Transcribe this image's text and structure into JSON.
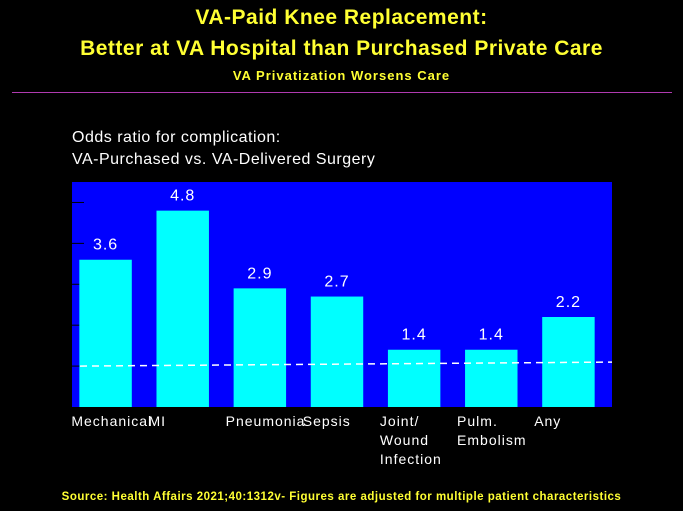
{
  "header": {
    "title_line1": "VA-Paid Knee Replacement:",
    "title_line2": "Better at VA Hospital than Purchased Private Care",
    "subtitle": "VA Privatization Worsens Care"
  },
  "chart_data": {
    "type": "bar",
    "ylabel_line1": "Odds ratio for complication:",
    "ylabel_line2": "VA-Purchased vs. VA-Delivered Surgery",
    "categories": [
      [
        "Mechanical"
      ],
      [
        "MI"
      ],
      [
        "Pneumonia"
      ],
      [
        "Sepsis"
      ],
      [
        "Joint/",
        "Wound",
        "Infection"
      ],
      [
        "Pulm.",
        "Embolism"
      ],
      [
        "Any"
      ]
    ],
    "values": [
      3.6,
      4.8,
      2.9,
      2.7,
      1.4,
      1.4,
      2.2
    ],
    "value_labels": [
      "3.6",
      "4.8",
      "2.9",
      "2.7",
      "1.4",
      "1.4",
      "2.2"
    ],
    "ylim": [
      0,
      5.5
    ],
    "reference_line": 1.0,
    "colors": {
      "plot_background": "#0000ff",
      "bar": "#00ffff",
      "text": "#ffffff",
      "reference_line": "#ffffff"
    }
  },
  "footer": {
    "source": "Source: Health Affairs 2021;40:1312v- Figures are adjusted for multiple patient characteristics"
  },
  "colors": {
    "background": "#000000",
    "title": "#ffff33",
    "rule": "#b03ab0"
  }
}
